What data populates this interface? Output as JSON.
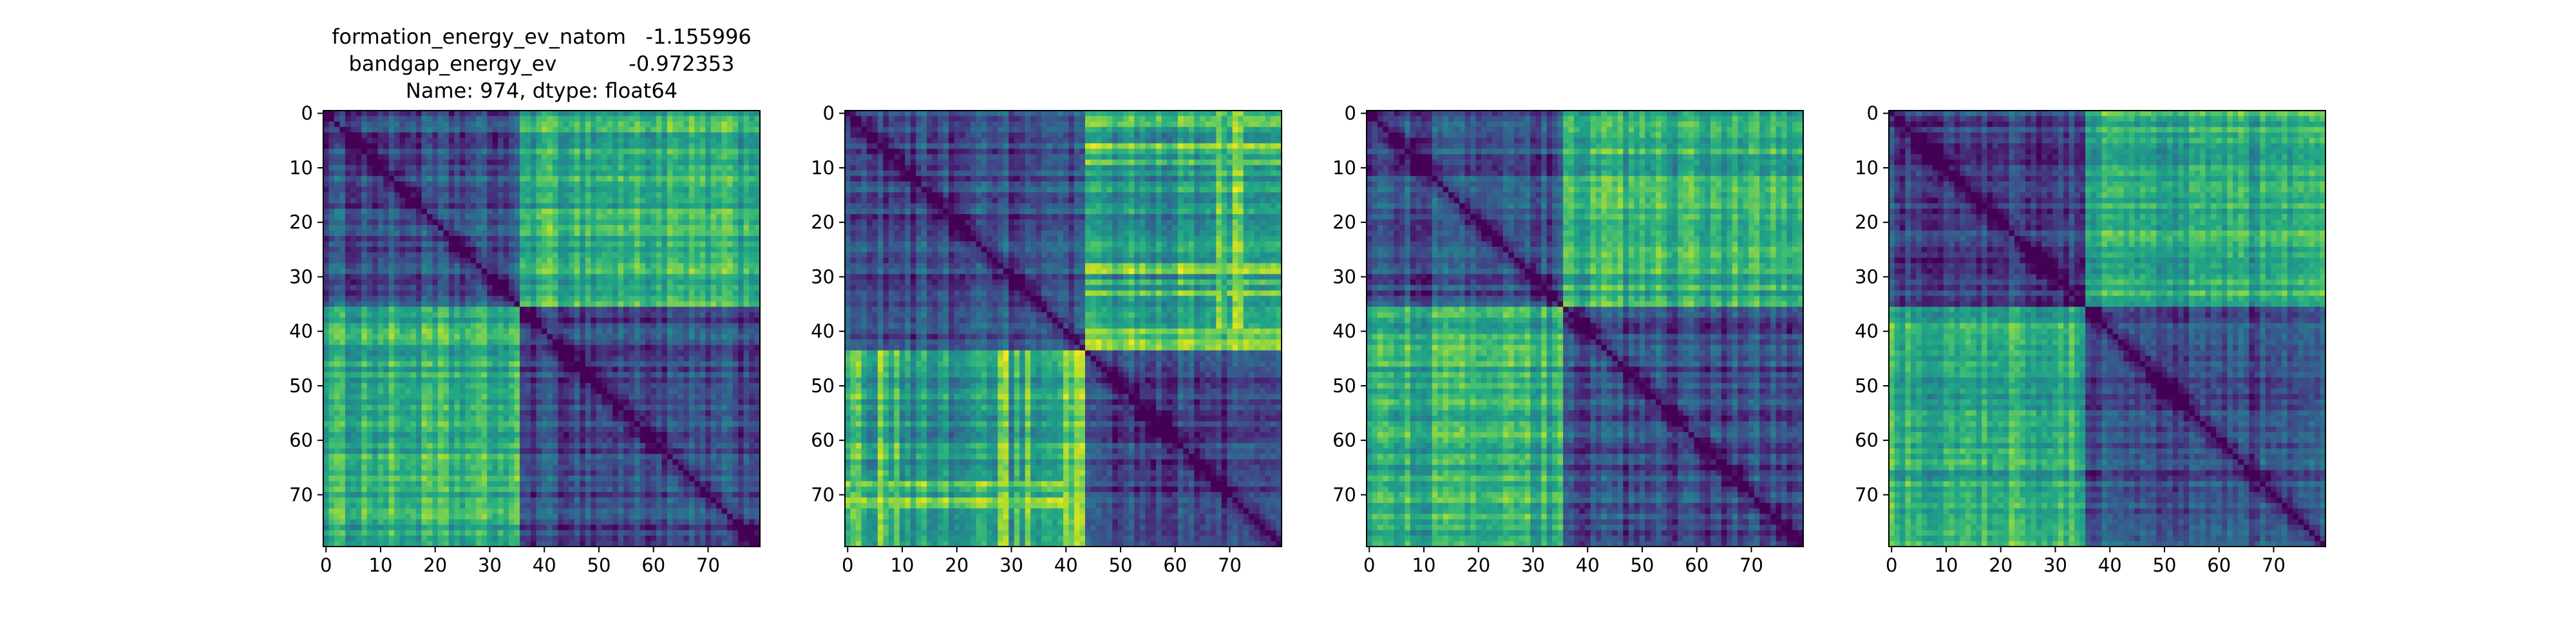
{
  "title": {
    "line1": "formation_energy_ev_natom   -1.155996",
    "line2": "bandgap_energy_ev           -0.972353",
    "line3": "Name: 974, dtype: float64"
  },
  "chart_data": [
    {
      "type": "heatmap",
      "colormap": "viridis",
      "matrix_size": 80,
      "diagonal": "low (dark purple)",
      "block_boundary": 36,
      "xticks": [
        0,
        10,
        20,
        30,
        40,
        50,
        60,
        70
      ],
      "yticks": [
        0,
        10,
        20,
        30,
        40,
        50,
        60,
        70
      ],
      "xlim": [
        0,
        79
      ],
      "ylim": [
        79,
        0
      ]
    },
    {
      "type": "heatmap",
      "colormap": "viridis",
      "matrix_size": 80,
      "diagonal": "low (dark purple)",
      "block_boundary": 44,
      "xticks": [
        0,
        10,
        20,
        30,
        40,
        50,
        60,
        70
      ],
      "yticks": [
        0,
        10,
        20,
        30,
        40,
        50,
        60,
        70
      ],
      "xlim": [
        0,
        79
      ],
      "ylim": [
        79,
        0
      ]
    },
    {
      "type": "heatmap",
      "colormap": "viridis",
      "matrix_size": 80,
      "diagonal": "low (dark purple)",
      "block_boundary": 36,
      "xticks": [
        0,
        10,
        20,
        30,
        40,
        50,
        60,
        70
      ],
      "yticks": [
        0,
        10,
        20,
        30,
        40,
        50,
        60,
        70
      ],
      "xlim": [
        0,
        79
      ],
      "ylim": [
        79,
        0
      ]
    },
    {
      "type": "heatmap",
      "colormap": "viridis",
      "matrix_size": 80,
      "diagonal": "low (dark purple)",
      "block_boundary": 36,
      "xticks": [
        0,
        10,
        20,
        30,
        40,
        50,
        60,
        70
      ],
      "yticks": [
        0,
        10,
        20,
        30,
        40,
        50,
        60,
        70
      ],
      "xlim": [
        0,
        79
      ],
      "ylim": [
        79,
        0
      ]
    }
  ]
}
